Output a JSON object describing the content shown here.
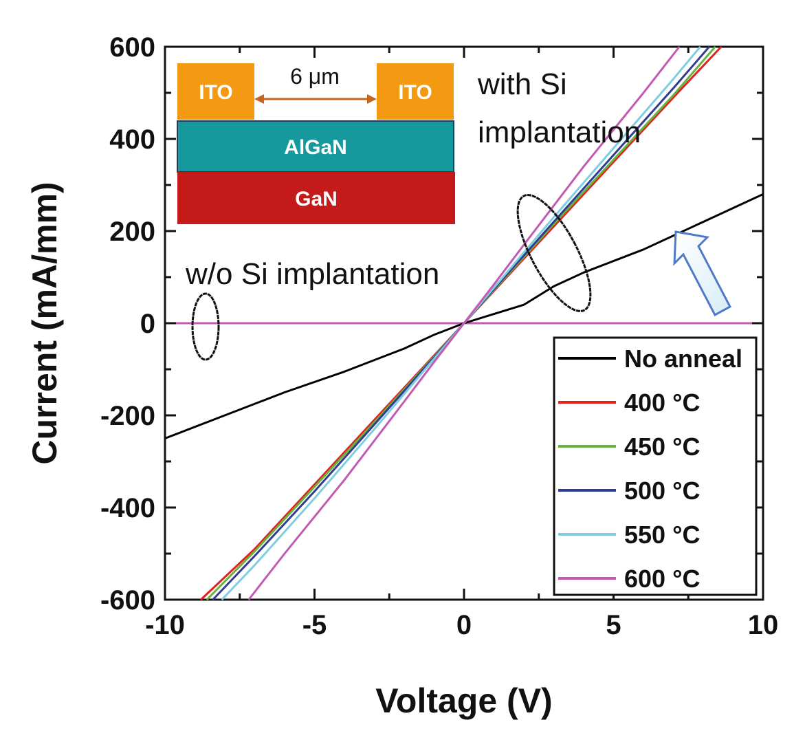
{
  "chart_data": {
    "type": "line",
    "xlabel": "Voltage (V)",
    "ylabel": "Current (mA/mm)",
    "xlim": [
      -10,
      10
    ],
    "ylim": [
      -600,
      600
    ],
    "xticks": [
      -10,
      -5,
      0,
      5,
      10
    ],
    "yticks": [
      -600,
      -400,
      -200,
      0,
      200,
      400,
      600
    ],
    "grid": false,
    "legend_position": "bottom-right",
    "series": [
      {
        "name": "No anneal",
        "color": "#000000",
        "x": [
          -10,
          -8,
          -6,
          -4,
          -2,
          -1,
          0,
          1,
          2,
          3,
          4,
          6,
          8,
          10
        ],
        "y": [
          -250,
          -200,
          -150,
          -105,
          -55,
          -25,
          0,
          20,
          40,
          80,
          110,
          160,
          220,
          280
        ]
      },
      {
        "name": "400 °C",
        "color": "#e0221f",
        "x": [
          -8.8,
          -7,
          -5,
          -3,
          -1,
          0,
          1,
          3,
          5,
          7,
          8.6
        ],
        "y": [
          -600,
          -490,
          -350,
          -210,
          -70,
          0,
          70,
          210,
          350,
          490,
          600
        ]
      },
      {
        "name": "450 °C",
        "color": "#6ab23e",
        "x": [
          -8.6,
          -7,
          -5,
          -3,
          -1,
          0,
          1,
          3,
          5,
          7,
          8.4
        ],
        "y": [
          -600,
          -495,
          -355,
          -215,
          -72,
          0,
          72,
          215,
          355,
          495,
          600
        ]
      },
      {
        "name": "500 °C",
        "color": "#2f3d91",
        "x": [
          -8.4,
          -7,
          -5,
          -3,
          -1,
          0,
          1,
          3,
          5,
          7,
          8.2
        ],
        "y": [
          -600,
          -505,
          -365,
          -220,
          -74,
          0,
          74,
          220,
          365,
          510,
          600
        ]
      },
      {
        "name": "550 °C",
        "color": "#7fcde0",
        "x": [
          -8.1,
          -7,
          -5,
          -3,
          -1,
          0,
          1,
          3,
          5,
          7,
          7.9
        ],
        "y": [
          -600,
          -525,
          -380,
          -230,
          -77,
          0,
          77,
          230,
          380,
          530,
          600
        ]
      },
      {
        "name": "600 °C",
        "color": "#c15ab3",
        "x": [
          -7.2,
          -6,
          -4,
          -2,
          -1,
          0,
          1,
          2,
          4,
          6,
          7.2
        ],
        "y": [
          -600,
          -500,
          -340,
          -170,
          -84,
          0,
          84,
          170,
          340,
          500,
          600
        ]
      }
    ],
    "flat_series": {
      "color": "#c15ab3",
      "x": [
        -10,
        10
      ],
      "y": [
        0,
        0
      ]
    },
    "annotations": {
      "with_si_line1": "with Si",
      "with_si_line2": "implantation",
      "without_si": "w/o Si implantation"
    },
    "inset": {
      "contact_left": "ITO",
      "contact_right": "ITO",
      "gap_label": "6 μm",
      "barrier": "AlGaN",
      "channel": "GaN",
      "colors": {
        "ito": "#f39a12",
        "algan": "#16999c",
        "gan": "#c41a1a",
        "arrow": "#c5651e"
      }
    },
    "arrow_color": "#4f79c9"
  }
}
